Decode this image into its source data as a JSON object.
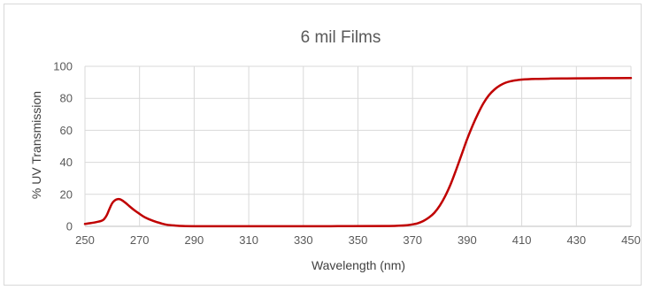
{
  "chart_data": {
    "type": "line",
    "title": "6 mil Films",
    "xlabel": "Wavelength (nm)",
    "ylabel": "% UV Transmission",
    "xlim": [
      250,
      450
    ],
    "ylim": [
      0,
      100
    ],
    "x_ticks": [
      250,
      270,
      290,
      310,
      330,
      350,
      370,
      390,
      410,
      430,
      450
    ],
    "y_ticks": [
      0,
      20,
      40,
      60,
      80,
      100
    ],
    "grid": true,
    "legend": "none",
    "series": [
      {
        "color": "#c00000",
        "x": [
          250,
          252,
          254,
          256,
          257,
          258,
          259,
          260,
          261,
          262,
          263,
          264,
          265,
          266,
          268,
          270,
          272,
          275,
          278,
          280,
          283,
          286,
          290,
          300,
          320,
          340,
          360,
          365,
          368,
          370,
          372,
          374,
          376,
          378,
          380,
          382,
          384,
          386,
          388,
          390,
          392,
          394,
          396,
          398,
          400,
          402,
          404,
          406,
          408,
          410,
          415,
          420,
          425,
          430,
          440,
          450
        ],
        "y": [
          1.5,
          2.0,
          2.6,
          3.4,
          4.5,
          7.0,
          11.0,
          14.5,
          16.3,
          17.0,
          16.8,
          15.8,
          14.5,
          13.0,
          10.2,
          7.8,
          5.6,
          3.4,
          1.8,
          1.0,
          0.5,
          0.2,
          0.1,
          0.1,
          0.1,
          0.1,
          0.2,
          0.4,
          0.7,
          1.2,
          2.0,
          3.4,
          5.5,
          8.5,
          13.0,
          19.0,
          26.5,
          35.5,
          45.0,
          54.5,
          63.0,
          70.5,
          77.0,
          82.0,
          85.5,
          88.0,
          89.7,
          90.7,
          91.3,
          91.7,
          92.1,
          92.3,
          92.4,
          92.5,
          92.6,
          92.7
        ]
      }
    ]
  }
}
